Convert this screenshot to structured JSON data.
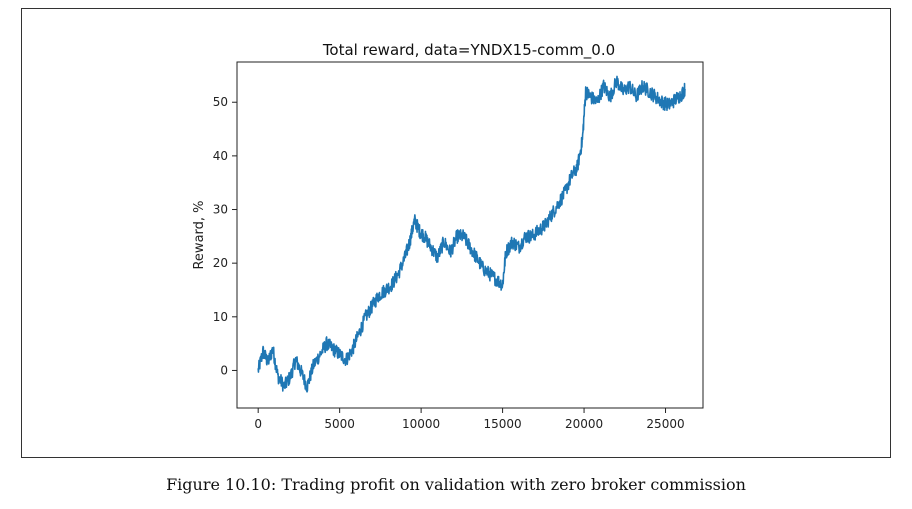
{
  "caption": "Figure 10.10: Trading profit on validation with zero broker commission",
  "chart_data": {
    "type": "line",
    "title": "Total reward, data=YNDX15-comm_0.0",
    "xlabel": "",
    "ylabel": "Reward, %",
    "xlim": [
      -1300,
      27300
    ],
    "ylim": [
      -7,
      57.5
    ],
    "xticks": [
      0,
      5000,
      10000,
      15000,
      20000,
      25000
    ],
    "yticks": [
      0,
      10,
      20,
      30,
      40,
      50
    ],
    "grid": false,
    "line_color": "#1f77b4",
    "series": [
      {
        "x": [
          0,
          300,
          600,
          900,
          1200,
          1600,
          2000,
          2300,
          2600,
          3000,
          3400,
          3800,
          4200,
          4600,
          5000,
          5400,
          5800,
          6200,
          6600,
          7000,
          7400,
          7800,
          8200,
          8600,
          9000,
          9300,
          9600,
          9900,
          10200,
          10600,
          11000,
          11400,
          11800,
          12200,
          12600,
          13000,
          13400,
          13800,
          14200,
          14600,
          15000,
          15200,
          15600,
          16000,
          16400,
          16800,
          17200,
          17600,
          18000,
          18400,
          18800,
          19200,
          19600,
          19900,
          20100,
          20400,
          20800,
          21200,
          21600,
          22000,
          22400,
          22800,
          23200,
          23600,
          24000,
          24400,
          24800,
          25200,
          25600,
          26000,
          26200
        ],
        "y": [
          0,
          3.5,
          1.5,
          4,
          -1,
          -3,
          -1,
          2,
          0,
          -3,
          1,
          3,
          5,
          4,
          3,
          2,
          4,
          7,
          10,
          12,
          14,
          15,
          16,
          18,
          21,
          24,
          28,
          26,
          25,
          23,
          21,
          24,
          22,
          25,
          25,
          23,
          21,
          19,
          18,
          17,
          16,
          22,
          24,
          23,
          25,
          25,
          26,
          27,
          29,
          31,
          33,
          36,
          38,
          43,
          52,
          51,
          50,
          53,
          51,
          54,
          52,
          53,
          51,
          53,
          52,
          51,
          50,
          49.5,
          50.5,
          51.5,
          52.5
        ]
      }
    ]
  }
}
